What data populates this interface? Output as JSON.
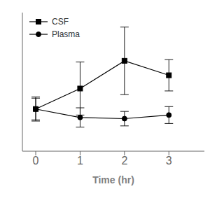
{
  "chart_data": {
    "type": "line",
    "x_label": "Time (hr)",
    "x": [
      0,
      1,
      2,
      3
    ],
    "series": [
      {
        "name": "CSF",
        "color": "#000000",
        "marker": "square",
        "line_style": "solid",
        "values": [
          0.35,
          0.52,
          0.75,
          0.63
        ],
        "errors": [
          0.1,
          0.22,
          0.28,
          0.13
        ]
      },
      {
        "name": "Plasma",
        "color": "#000000",
        "marker": "circle",
        "line_style": "solid",
        "values": [
          0.35,
          0.28,
          0.27,
          0.3
        ],
        "errors": [
          0.09,
          0.08,
          0.06,
          0.07
        ]
      }
    ],
    "xlim": [
      -0.3,
      3.8
    ],
    "ylim": [
      0.0,
      1.15
    ],
    "xticks": [
      0,
      1,
      2,
      3
    ],
    "tick_labels": "x",
    "legend": "upper left",
    "grid": false
  }
}
